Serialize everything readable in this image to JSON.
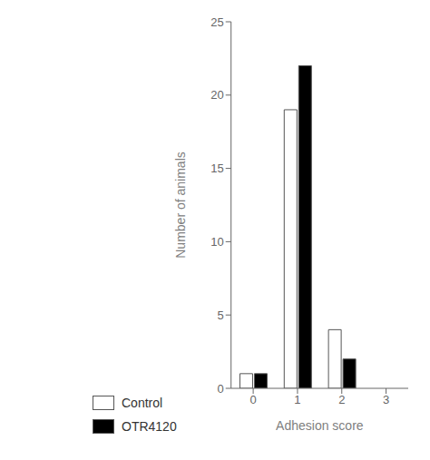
{
  "chart_data": {
    "type": "bar",
    "categories": [
      "0",
      "1",
      "2",
      "3"
    ],
    "series": [
      {
        "name": "Control",
        "color": "#ffffff",
        "values": [
          1,
          19,
          4,
          0
        ]
      },
      {
        "name": "OTR4120",
        "color": "#000000",
        "values": [
          1,
          22,
          2,
          0
        ]
      }
    ],
    "xlabel": "Adhesion score",
    "ylabel": "Number of animals",
    "ylim": [
      0,
      25
    ],
    "yticks": [
      0,
      5,
      10,
      15,
      20,
      25
    ],
    "grid": false,
    "legend": "bottom"
  }
}
